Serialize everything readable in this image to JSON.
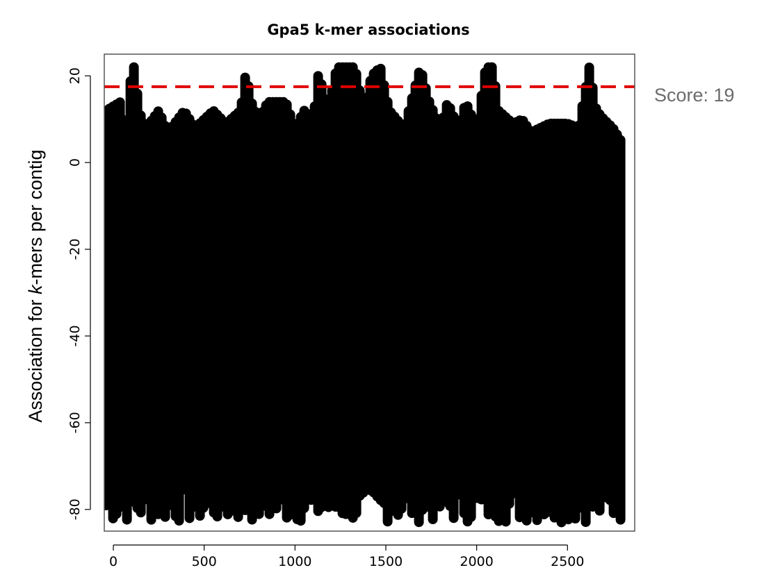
{
  "chart_data": {
    "type": "scatter",
    "title": "Gpa5 k-mer associations",
    "xlabel": "",
    "ylabel_parts": [
      "Association for ",
      "k",
      "-mers per contig"
    ],
    "xlim": [
      -50,
      2870
    ],
    "ylim": [
      -85,
      25
    ],
    "x_ticks": [
      0,
      500,
      1000,
      1500,
      2000,
      2500
    ],
    "y_ticks": [
      -80,
      -60,
      -40,
      -20,
      0,
      20
    ],
    "grid": false,
    "point_color": "#000000",
    "threshold": {
      "y": 17.5,
      "color": "#e00000",
      "style": "dashed"
    },
    "annotation": "Score: 19",
    "annotation_color": "#6b6b6b",
    "x_range": [
      -40,
      2810
    ],
    "bottom_range": [
      -83,
      -75
    ],
    "top_envelope": [
      [
        -40,
        12
      ],
      [
        0,
        13
      ],
      [
        40,
        14
      ],
      [
        70,
        6
      ],
      [
        100,
        22
      ],
      [
        120,
        22
      ],
      [
        140,
        12
      ],
      [
        180,
        8
      ],
      [
        250,
        12
      ],
      [
        300,
        7
      ],
      [
        390,
        12
      ],
      [
        450,
        8
      ],
      [
        550,
        12
      ],
      [
        620,
        9
      ],
      [
        700,
        12
      ],
      [
        730,
        21
      ],
      [
        760,
        14
      ],
      [
        800,
        10
      ],
      [
        850,
        14
      ],
      [
        950,
        14
      ],
      [
        1000,
        8
      ],
      [
        1050,
        12
      ],
      [
        1100,
        10
      ],
      [
        1130,
        21
      ],
      [
        1180,
        12
      ],
      [
        1230,
        22
      ],
      [
        1280,
        22
      ],
      [
        1330,
        22
      ],
      [
        1380,
        12
      ],
      [
        1420,
        20
      ],
      [
        1470,
        22
      ],
      [
        1520,
        12
      ],
      [
        1600,
        8
      ],
      [
        1690,
        22
      ],
      [
        1740,
        14
      ],
      [
        1800,
        8
      ],
      [
        1840,
        14
      ],
      [
        1900,
        8
      ],
      [
        1940,
        14
      ],
      [
        2000,
        8
      ],
      [
        2050,
        22
      ],
      [
        2090,
        22
      ],
      [
        2120,
        12
      ],
      [
        2200,
        9
      ],
      [
        2250,
        10
      ],
      [
        2300,
        7
      ],
      [
        2400,
        9
      ],
      [
        2500,
        9
      ],
      [
        2560,
        8
      ],
      [
        2620,
        22
      ],
      [
        2660,
        12
      ],
      [
        2700,
        10
      ],
      [
        2750,
        8
      ],
      [
        2810,
        4
      ]
    ]
  }
}
